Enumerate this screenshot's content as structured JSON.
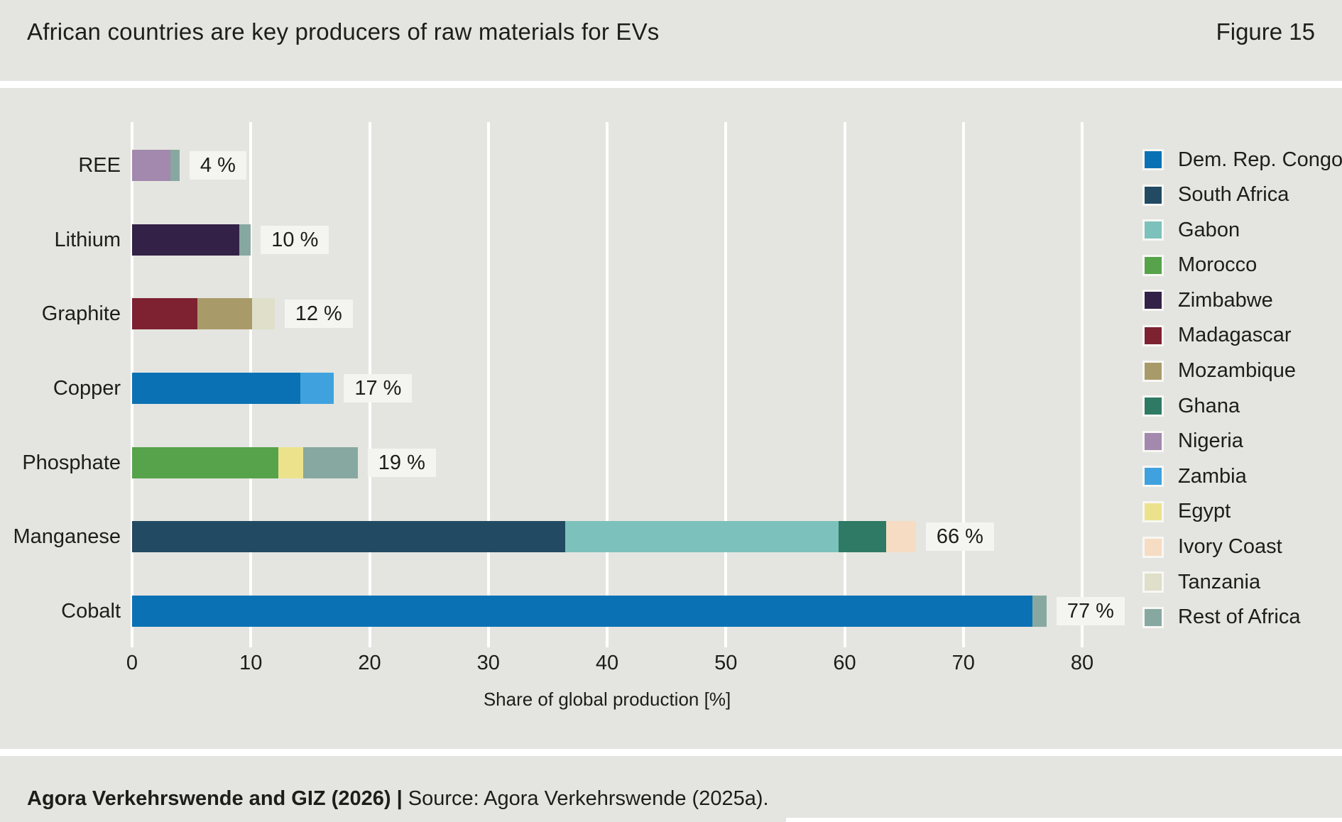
{
  "header": {
    "title": "African countries are key producers of raw materials for EVs",
    "figure_label": "Figure 15"
  },
  "chart_data": {
    "type": "bar",
    "orientation": "horizontal",
    "stacked": true,
    "title": "African countries are key producers of raw materials for EVs",
    "xlabel": "Share of global production [%]",
    "ylabel": "",
    "xlim": [
      0,
      80
    ],
    "xticks": [
      0,
      10,
      20,
      30,
      40,
      50,
      60,
      70,
      80
    ],
    "grid": "vertical white gridlines on gray background",
    "legend_position": "right",
    "categories": [
      "REE",
      "Lithium",
      "Graphite",
      "Copper",
      "Phosphate",
      "Manganese",
      "Cobalt"
    ],
    "rows": [
      {
        "category": "REE",
        "total": 4,
        "value_label": "4 %",
        "segments": [
          {
            "name": "Nigeria",
            "value": 3.2
          },
          {
            "name": "Rest of Africa",
            "value": 0.8
          }
        ]
      },
      {
        "category": "Lithium",
        "total": 10,
        "value_label": "10 %",
        "segments": [
          {
            "name": "Zimbabwe",
            "value": 9
          },
          {
            "name": "Rest of Africa",
            "value": 1
          }
        ]
      },
      {
        "category": "Graphite",
        "total": 12,
        "value_label": "12 %",
        "segments": [
          {
            "name": "Madagascar",
            "value": 5.5
          },
          {
            "name": "Mozambique",
            "value": 4.6
          },
          {
            "name": "Tanzania",
            "value": 1.9
          }
        ]
      },
      {
        "category": "Copper",
        "total": 17,
        "value_label": "17 %",
        "segments": [
          {
            "name": "Dem. Rep. Congo",
            "value": 14.2
          },
          {
            "name": "Zambia",
            "value": 2.8
          }
        ]
      },
      {
        "category": "Phosphate",
        "total": 19,
        "value_label": "19 %",
        "segments": [
          {
            "name": "Morocco",
            "value": 12.3
          },
          {
            "name": "Egypt",
            "value": 2.1
          },
          {
            "name": "Rest of Africa",
            "value": 4.6
          }
        ]
      },
      {
        "category": "Manganese",
        "total": 66,
        "value_label": "66 %",
        "segments": [
          {
            "name": "South Africa",
            "value": 36.5
          },
          {
            "name": "Gabon",
            "value": 23
          },
          {
            "name": "Ghana",
            "value": 4
          },
          {
            "name": "Ivory Coast",
            "value": 2.5
          }
        ]
      },
      {
        "category": "Cobalt",
        "total": 77,
        "value_label": "77 %",
        "segments": [
          {
            "name": "Dem. Rep. Congo",
            "value": 75.8
          },
          {
            "name": "Rest of Africa",
            "value": 1.2
          }
        ]
      }
    ],
    "legend": [
      {
        "name": "Dem. Rep. Congo",
        "color": "#0a72b4"
      },
      {
        "name": "South Africa",
        "color": "#224a63"
      },
      {
        "name": "Gabon",
        "color": "#7dc1bc"
      },
      {
        "name": "Morocco",
        "color": "#56a34b"
      },
      {
        "name": "Zimbabwe",
        "color": "#332147"
      },
      {
        "name": "Madagascar",
        "color": "#7e2130"
      },
      {
        "name": "Mozambique",
        "color": "#a99b69"
      },
      {
        "name": "Ghana",
        "color": "#2e7a64"
      },
      {
        "name": "Nigeria",
        "color": "#a289ad"
      },
      {
        "name": "Zambia",
        "color": "#3fa2df"
      },
      {
        "name": "Egypt",
        "color": "#ece28c"
      },
      {
        "name": "Ivory Coast",
        "color": "#f6dcc3"
      },
      {
        "name": "Tanzania",
        "color": "#dfdfca"
      },
      {
        "name": "Rest of Africa",
        "color": "#87a8a0"
      }
    ],
    "colors": {
      "background": "#e4e5e0",
      "gridline": "#ffffff",
      "value_box_background": "#f4f4f1",
      "text": "#1d1d1b"
    }
  },
  "footer": {
    "credit": "Agora Verkehrswende and GIZ (2026) |",
    "source": "Source: Agora Verkehrswende (2025a)."
  }
}
